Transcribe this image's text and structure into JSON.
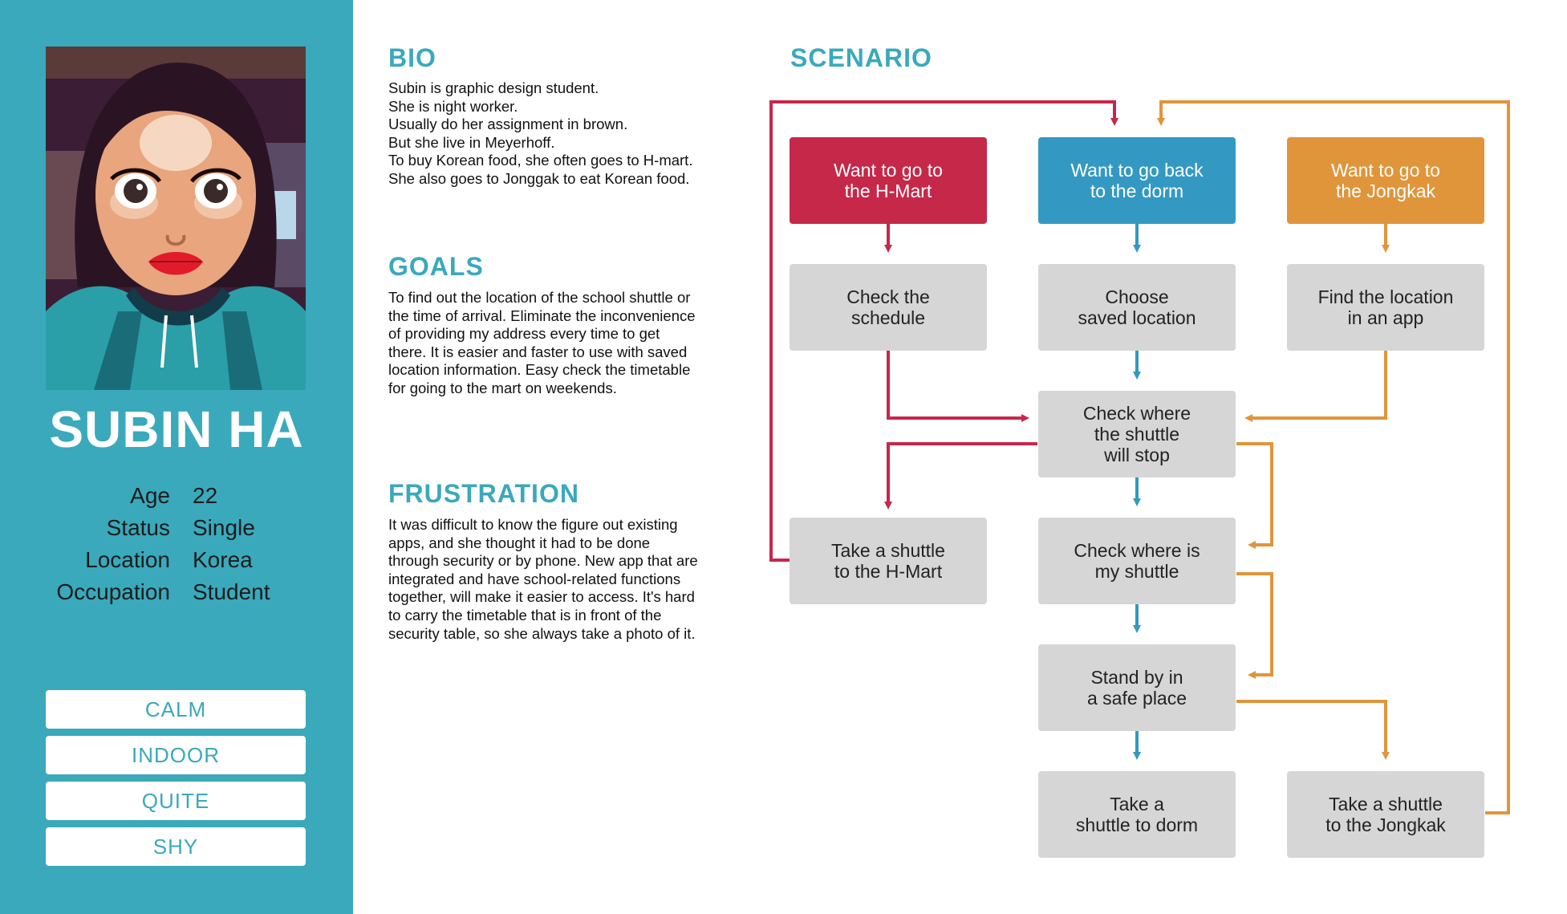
{
  "persona": {
    "name": "SUBIN HA",
    "info": [
      {
        "key": "Age",
        "value": "22"
      },
      {
        "key": "Status",
        "value": "Single"
      },
      {
        "key": "Location",
        "value": "Korea"
      },
      {
        "key": "Occupation",
        "value": "Student"
      }
    ],
    "tags": [
      "CALM",
      "INDOOR",
      "QUITE",
      "SHY"
    ]
  },
  "bio": {
    "title": "BIO",
    "lines": [
      "Subin is graphic design student.",
      "She is night worker.",
      "Usually do her assignment in brown.",
      "But she live in Meyerhoff.",
      "To buy Korean food, she often goes to  H-mart.",
      "She also goes to Jonggak to eat Korean food."
    ]
  },
  "goals": {
    "title": "GOALS",
    "lines": [
      "To find out the location of the school shuttle or",
      "the time of arrival. Eliminate the inconvenience",
      "of providing my address every time to get",
      "there. It is easier and faster to use with saved",
      "location information. Easy check the timetable",
      "for going to the mart on weekends."
    ]
  },
  "frustration": {
    "title": "FRUSTRATION",
    "lines": [
      "It was difficult to know the figure out existing",
      "apps, and she thought it had to be done",
      "through security or by phone. New app that are",
      "integrated and have school-related functions",
      "together, will make it easier to access. It's hard",
      "to carry the timetable that is in front of the",
      "security table, so she always take a photo of it."
    ]
  },
  "scenario": {
    "title": "SCENARIO",
    "colors": {
      "red": "#c6284a",
      "blue": "#3399c2",
      "orange": "#e0953a",
      "gray": "#d6d6d6",
      "accent": "#3aa9bb"
    },
    "boxes": {
      "want_hmart": "Want to go to\nthe H-Mart",
      "want_dorm": "Want to go back\nto the dorm",
      "want_jongkak": "Want to go to\nthe Jongkak",
      "check_schedule": "Check the\nschedule",
      "choose_location": "Choose\nsaved location",
      "find_location": "Find the location\nin an app",
      "check_stop": "Check where\nthe shuttle\nwill stop",
      "take_hmart": "Take a shuttle\nto the H-Mart",
      "check_my_shuttle": "Check where is\nmy shuttle",
      "stand_by": "Stand by in\na safe place",
      "take_dorm": "Take a\nshuttle to dorm",
      "take_jongkak": "Take a shuttle\nto the Jongkak"
    }
  }
}
